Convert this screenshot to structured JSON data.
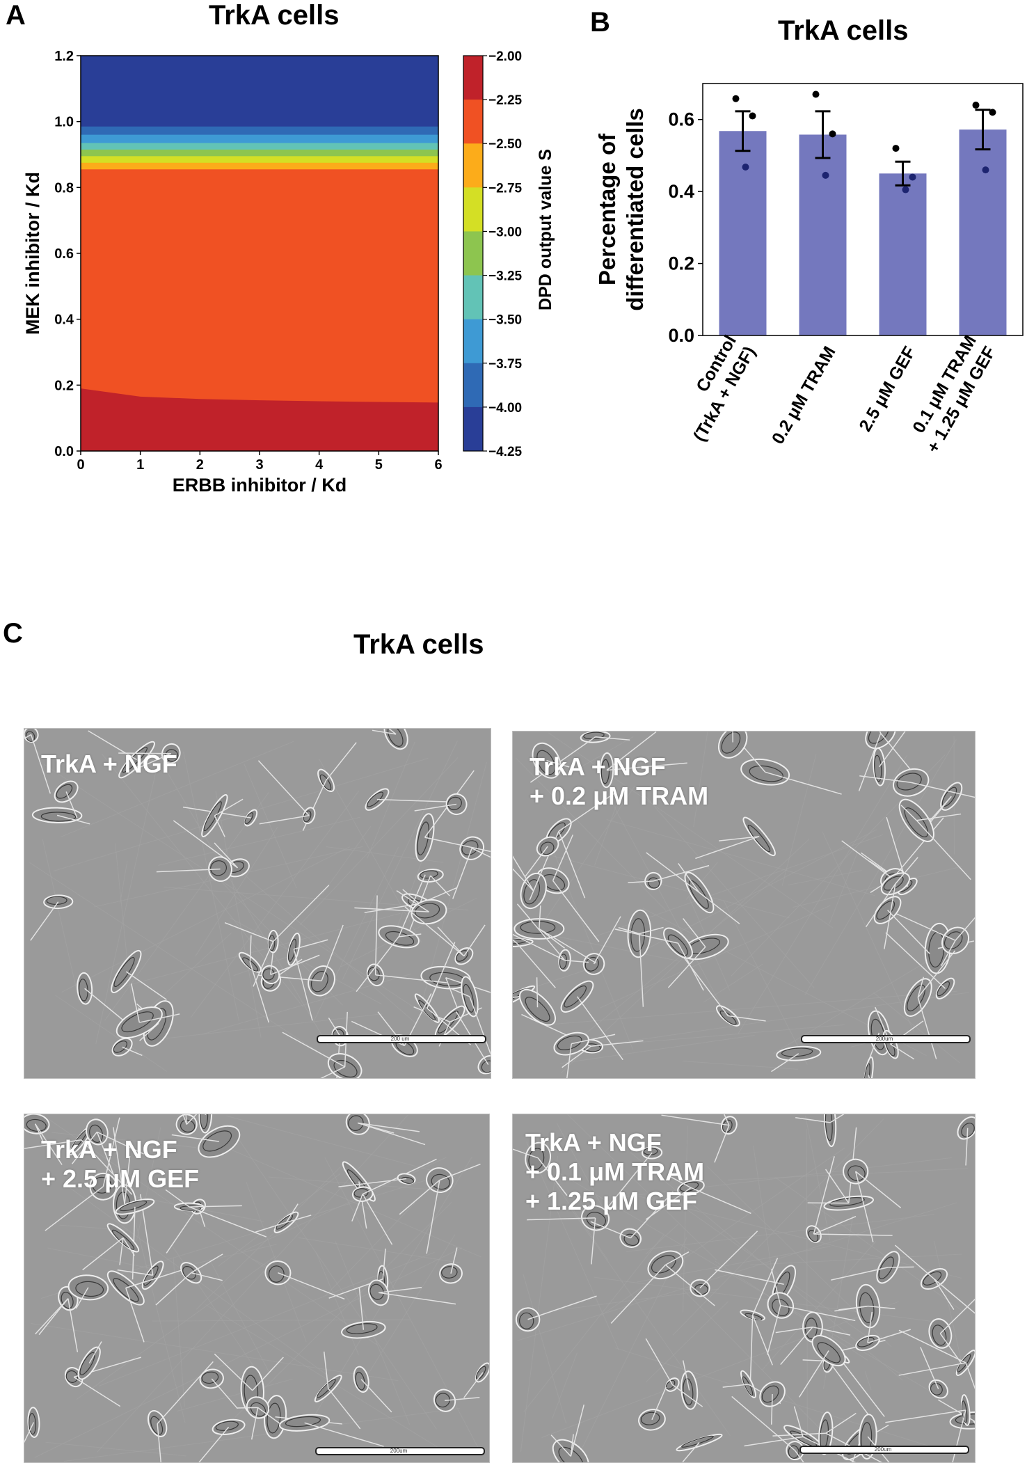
{
  "panels": {
    "A": {
      "letter": "A",
      "title": "TrkA cells"
    },
    "B": {
      "letter": "B",
      "title": "TrkA cells"
    },
    "C": {
      "letter": "C",
      "title": "TrkA cells"
    }
  },
  "chart_data": [
    {
      "type": "heatmap",
      "title": "TrkA cells",
      "xlabel": "ERBB inhibitor / Kd",
      "ylabel": "MEK inhibitor / Kd",
      "xlim": [
        0,
        6
      ],
      "ylim": [
        0,
        1.2
      ],
      "xticks": [
        "0",
        "1",
        "2",
        "3",
        "4",
        "5",
        "6"
      ],
      "yticks": [
        "0.0",
        "0.2",
        "0.4",
        "0.6",
        "0.8",
        "1.0",
        "1.2"
      ],
      "colorbar": {
        "label": "DPD output value S",
        "ticks": [
          "−2.00",
          "−2.25",
          "−2.50",
          "−2.75",
          "−3.00",
          "−3.25",
          "−3.50",
          "−3.75",
          "−4.00",
          "−4.25"
        ],
        "levels": [
          {
            "from": -2.25,
            "to": -2.0,
            "color": "#c0222a"
          },
          {
            "from": -2.5,
            "to": -2.25,
            "color": "#f05123"
          },
          {
            "from": -2.75,
            "to": -2.5,
            "color": "#fcac1a"
          },
          {
            "from": -3.0,
            "to": -2.75,
            "color": "#d4df25"
          },
          {
            "from": -3.25,
            "to": -3.0,
            "color": "#8dc54f"
          },
          {
            "from": -3.5,
            "to": -3.25,
            "color": "#62c3b6"
          },
          {
            "from": -3.75,
            "to": -3.5,
            "color": "#3e9ad4"
          },
          {
            "from": -4.0,
            "to": -3.75,
            "color": "#2f6ab5"
          },
          {
            "from": -4.25,
            "to": -4.0,
            "color": "#293e97"
          }
        ]
      },
      "regions": [
        {
          "level": "-2.25 to -2.00",
          "color": "#c0222a",
          "boundary_mek": [
            [
              0,
              0.19
            ],
            [
              1,
              0.165
            ],
            [
              2,
              0.158
            ],
            [
              3,
              0.154
            ],
            [
              4,
              0.151
            ],
            [
              5,
              0.149
            ],
            [
              6,
              0.147
            ]
          ]
        },
        {
          "level": "-2.50 to -2.25",
          "mek_top": 0.855,
          "color": "#f05123"
        },
        {
          "level": "-2.75 to -2.50",
          "mek_top": 0.875,
          "color": "#fcac1a"
        },
        {
          "level": "-3.00 to -2.75",
          "mek_top": 0.895,
          "color": "#d4df25"
        },
        {
          "level": "-3.25 to -3.00",
          "mek_top": 0.915,
          "color": "#8dc54f"
        },
        {
          "level": "-3.50 to -3.25",
          "mek_top": 0.935,
          "color": "#62c3b6"
        },
        {
          "level": "-3.75 to -3.50",
          "mek_top": 0.96,
          "color": "#3e9ad4"
        },
        {
          "level": "-4.00 to -3.75",
          "mek_top": 0.985,
          "color": "#2f6ab5"
        },
        {
          "level": "-4.25 to -4.00",
          "mek_top": 1.2,
          "color": "#293e97"
        }
      ]
    },
    {
      "type": "bar",
      "title": "TrkA cells",
      "xlabel": "",
      "ylabel": "Percentage of differentiated cells",
      "ylabel_lines": [
        "Percentage of",
        "differentiated cells"
      ],
      "ylim": [
        0,
        0.7
      ],
      "yticks": [
        "0.0",
        "0.2",
        "0.4",
        "0.6"
      ],
      "bar_color": "#7478be",
      "categories": [
        [
          "Control",
          "(TrkA + NGF)"
        ],
        [
          "0.2 μM TRAM"
        ],
        [
          "2.5 μM GEF"
        ],
        [
          "0.1 μM TRAM",
          "+ 1.25 μM GEF"
        ]
      ],
      "values": [
        0.568,
        0.558,
        0.45,
        0.572
      ],
      "errors": [
        0.055,
        0.065,
        0.033,
        0.055
      ],
      "points": [
        [
          0.658,
          0.61,
          0.468
        ],
        [
          0.67,
          0.56,
          0.445
        ],
        [
          0.52,
          0.44,
          0.405
        ],
        [
          0.64,
          0.62,
          0.46
        ]
      ]
    }
  ],
  "micrographs": [
    {
      "label": "TrkA + NGF",
      "scale_text": "200 um"
    },
    {
      "label": "TrkA + NGF\n+ 0.2 μM TRAM",
      "scale_text": "200um"
    },
    {
      "label": "TrkA + NGF\n+ 2.5 μM GEF",
      "scale_text": "200um"
    },
    {
      "label": "TrkA + NGF\n+ 0.1 μM TRAM\n+ 1.25 μM GEF",
      "scale_text": "200um"
    }
  ]
}
